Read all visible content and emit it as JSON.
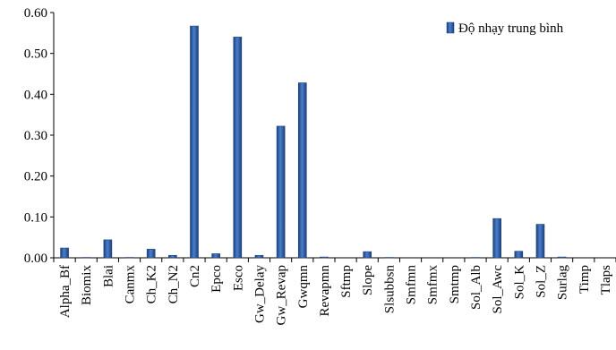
{
  "chart_data": {
    "type": "bar",
    "categories": [
      "Alpha_Bf",
      "Biomix",
      "Blai",
      "Canmx",
      "Ch_K2",
      "Ch_N2",
      "Cn2",
      "Epco",
      "Esco",
      "Gw_Delay",
      "Gw_Revap",
      "Gwqmn",
      "Revapmn",
      "Sftmp",
      "Slope",
      "Slsubbsn",
      "Smfmn",
      "Smfmx",
      "Smtmp",
      "Sol_Alb",
      "Sol_Awc",
      "Sol_K",
      "Sol_Z",
      "Surlag",
      "Timp",
      "Tlaps"
    ],
    "series": [
      {
        "name": "Độ nhạy trung bình",
        "values": [
          0.024,
          0.001,
          0.044,
          0.001,
          0.021,
          0.006,
          0.567,
          0.01,
          0.54,
          0.006,
          0.322,
          0.428,
          0.002,
          0.0,
          0.015,
          0.001,
          0.0,
          0.0,
          0.0,
          0.001,
          0.096,
          0.016,
          0.082,
          0.002,
          0.0,
          0.0
        ]
      }
    ],
    "ylim": [
      0,
      0.6
    ],
    "yticks": [
      "0.00",
      "0.10",
      "0.20",
      "0.30",
      "0.40",
      "0.50",
      "0.60"
    ],
    "title": "",
    "xlabel": "",
    "ylabel": "",
    "legend_position": "top-right",
    "grid": false,
    "bar_color": "#2E5FA8"
  }
}
